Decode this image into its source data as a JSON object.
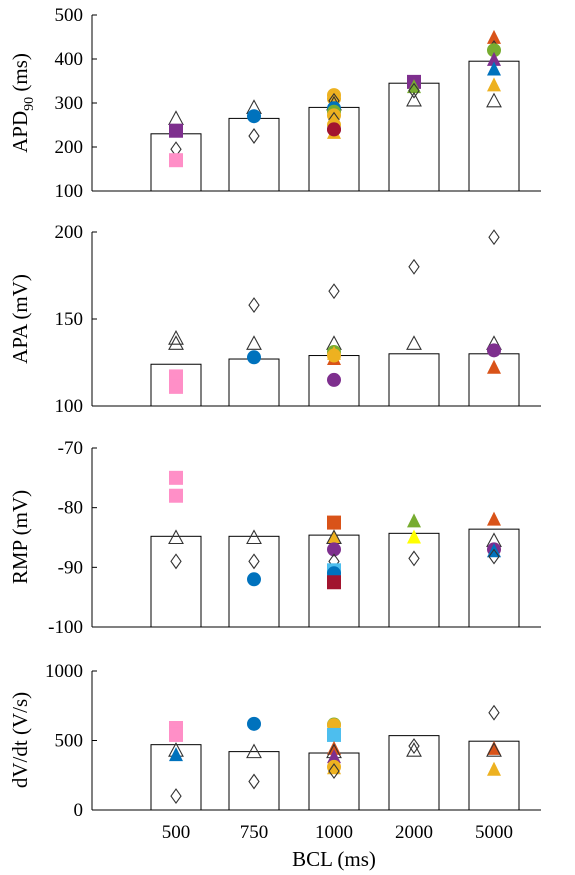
{
  "chart_data": [
    {
      "type": "bar",
      "ylabel": "APD",
      "ylabel_sub": "90",
      "ylabel_unit": " (ms)",
      "ylim": [
        100,
        500
      ],
      "yticks": [
        100,
        200,
        300,
        400,
        500
      ],
      "ytick_labels": [
        "100",
        "200",
        "300",
        "400",
        "500"
      ],
      "categories": [
        "500",
        "750",
        "1000",
        "2000",
        "5000"
      ],
      "values": [
        230,
        265,
        290,
        345,
        395
      ],
      "markers": [
        {
          "cat": 0,
          "shape": "triangle-open",
          "color": "#333333",
          "y": 265
        },
        {
          "cat": 0,
          "shape": "square",
          "color": "#7e2f8e",
          "y": 237
        },
        {
          "cat": 0,
          "shape": "diamond-open",
          "color": "#333333",
          "y": 195
        },
        {
          "cat": 0,
          "shape": "square",
          "color": "#ff8fc7",
          "y": 170
        },
        {
          "cat": 1,
          "shape": "triangle-open",
          "color": "#333333",
          "y": 290
        },
        {
          "cat": 1,
          "shape": "circle",
          "color": "#0072bd",
          "y": 270
        },
        {
          "cat": 1,
          "shape": "diamond-open",
          "color": "#333333",
          "y": 225
        },
        {
          "cat": 2,
          "shape": "circle",
          "color": "#edb120",
          "y": 318
        },
        {
          "cat": 2,
          "shape": "circle",
          "color": "#edb120",
          "y": 310
        },
        {
          "cat": 2,
          "shape": "diamond-open",
          "color": "#333333",
          "y": 305
        },
        {
          "cat": 2,
          "shape": "triangle-open",
          "color": "#333333",
          "y": 298
        },
        {
          "cat": 2,
          "shape": "circle",
          "color": "#0072bd",
          "y": 288
        },
        {
          "cat": 2,
          "shape": "circle",
          "color": "#77ac30",
          "y": 280
        },
        {
          "cat": 2,
          "shape": "circle",
          "color": "#edb120",
          "y": 272
        },
        {
          "cat": 2,
          "shape": "diamond-open",
          "color": "#333333",
          "y": 262
        },
        {
          "cat": 2,
          "shape": "circle",
          "color": "#edb120",
          "y": 250
        },
        {
          "cat": 2,
          "shape": "circle",
          "color": "#7e2f8e",
          "y": 240
        },
        {
          "cat": 2,
          "shape": "triangle",
          "color": "#edb120",
          "y": 232
        },
        {
          "cat": 2,
          "shape": "circle",
          "color": "#a2142f",
          "y": 240
        },
        {
          "cat": 3,
          "shape": "square",
          "color": "#7e2f8e",
          "y": 348
        },
        {
          "cat": 3,
          "shape": "triangle",
          "color": "#77ac30",
          "y": 336
        },
        {
          "cat": 3,
          "shape": "diamond-open",
          "color": "#333333",
          "y": 328
        },
        {
          "cat": 3,
          "shape": "triangle-open",
          "color": "#333333",
          "y": 307
        },
        {
          "cat": 4,
          "shape": "triangle",
          "color": "#d95319",
          "y": 448
        },
        {
          "cat": 4,
          "shape": "diamond-open",
          "color": "#333333",
          "y": 425
        },
        {
          "cat": 4,
          "shape": "circle",
          "color": "#77ac30",
          "y": 420
        },
        {
          "cat": 4,
          "shape": "triangle",
          "color": "#7e2f8e",
          "y": 398
        },
        {
          "cat": 4,
          "shape": "triangle",
          "color": "#0072bd",
          "y": 376
        },
        {
          "cat": 4,
          "shape": "triangle",
          "color": "#edb120",
          "y": 340
        },
        {
          "cat": 4,
          "shape": "triangle-open",
          "color": "#333333",
          "y": 305
        }
      ]
    },
    {
      "type": "bar",
      "ylabel": "APA (mV)",
      "ylim": [
        100,
        200
      ],
      "yticks": [
        100,
        150,
        200
      ],
      "ytick_labels": [
        "100",
        "150",
        "200"
      ],
      "categories": [
        "500",
        "750",
        "1000",
        "2000",
        "5000"
      ],
      "values": [
        124,
        127,
        129,
        130,
        130
      ],
      "markers": [
        {
          "cat": 0,
          "shape": "triangle-open",
          "color": "#333333",
          "y": 139
        },
        {
          "cat": 0,
          "shape": "triangle-open",
          "color": "#333333",
          "y": 136
        },
        {
          "cat": 0,
          "shape": "square",
          "color": "#ff8fc7",
          "y": 117
        },
        {
          "cat": 0,
          "shape": "square",
          "color": "#ff8fc7",
          "y": 111
        },
        {
          "cat": 1,
          "shape": "diamond-open",
          "color": "#333333",
          "y": 158
        },
        {
          "cat": 1,
          "shape": "triangle-open",
          "color": "#333333",
          "y": 136
        },
        {
          "cat": 1,
          "shape": "circle",
          "color": "#0072bd",
          "y": 128
        },
        {
          "cat": 2,
          "shape": "diamond-open",
          "color": "#333333",
          "y": 166
        },
        {
          "cat": 2,
          "shape": "triangle-open",
          "color": "#333333",
          "y": 136
        },
        {
          "cat": 2,
          "shape": "circle",
          "color": "#77ac30",
          "y": 131
        },
        {
          "cat": 2,
          "shape": "triangle",
          "color": "#d95319",
          "y": 127
        },
        {
          "cat": 2,
          "shape": "triangle",
          "color": "#edb120",
          "y": 130
        },
        {
          "cat": 2,
          "shape": "circle",
          "color": "#edb120",
          "y": 129
        },
        {
          "cat": 2,
          "shape": "circle",
          "color": "#7e2f8e",
          "y": 115
        },
        {
          "cat": 3,
          "shape": "diamond-open",
          "color": "#333333",
          "y": 180
        },
        {
          "cat": 3,
          "shape": "triangle-open",
          "color": "#333333",
          "y": 136
        },
        {
          "cat": 4,
          "shape": "diamond-open",
          "color": "#333333",
          "y": 197
        },
        {
          "cat": 4,
          "shape": "triangle-open",
          "color": "#333333",
          "y": 136
        },
        {
          "cat": 4,
          "shape": "circle",
          "color": "#7e2f8e",
          "y": 132
        },
        {
          "cat": 4,
          "shape": "triangle",
          "color": "#d95319",
          "y": 122
        }
      ]
    },
    {
      "type": "bar",
      "ylabel": "RMP (mV)",
      "ylim": [
        -100,
        -70
      ],
      "yticks": [
        -100,
        -90,
        -80,
        -70
      ],
      "ytick_labels": [
        "-100",
        "-90",
        "-80",
        "-70"
      ],
      "categories": [
        "500",
        "750",
        "1000",
        "2000",
        "5000"
      ],
      "values": [
        -84.8,
        -84.8,
        -84.6,
        -84.3,
        -83.6
      ],
      "markers": [
        {
          "cat": 0,
          "shape": "square",
          "color": "#ff8fc7",
          "y": -75
        },
        {
          "cat": 0,
          "shape": "square",
          "color": "#ff8fc7",
          "y": -78
        },
        {
          "cat": 0,
          "shape": "triangle-open",
          "color": "#333333",
          "y": -85
        },
        {
          "cat": 0,
          "shape": "diamond-open",
          "color": "#333333",
          "y": -89
        },
        {
          "cat": 1,
          "shape": "triangle-open",
          "color": "#333333",
          "y": -85
        },
        {
          "cat": 1,
          "shape": "diamond-open",
          "color": "#333333",
          "y": -89
        },
        {
          "cat": 1,
          "shape": "circle",
          "color": "#0072bd",
          "y": -92
        },
        {
          "cat": 2,
          "shape": "square",
          "color": "#d95319",
          "y": -82.5
        },
        {
          "cat": 2,
          "shape": "triangle",
          "color": "#edb120",
          "y": -85
        },
        {
          "cat": 2,
          "shape": "triangle-open",
          "color": "#333333",
          "y": -85
        },
        {
          "cat": 2,
          "shape": "circle",
          "color": "#7e2f8e",
          "y": -87
        },
        {
          "cat": 2,
          "shape": "diamond-open",
          "color": "#333333",
          "y": -89
        },
        {
          "cat": 2,
          "shape": "square",
          "color": "#4dbeee",
          "y": -90.5
        },
        {
          "cat": 2,
          "shape": "circle",
          "color": "#0072bd",
          "y": -91
        },
        {
          "cat": 2,
          "shape": "square",
          "color": "#a2142f",
          "y": -92.5
        },
        {
          "cat": 3,
          "shape": "triangle",
          "color": "#77ac30",
          "y": -82.3
        },
        {
          "cat": 3,
          "shape": "triangle",
          "color": "#ffff00",
          "y": -85
        },
        {
          "cat": 3,
          "shape": "diamond-open",
          "color": "#333333",
          "y": -88.5
        },
        {
          "cat": 4,
          "shape": "triangle",
          "color": "#d95319",
          "y": -82
        },
        {
          "cat": 4,
          "shape": "triangle-open",
          "color": "#333333",
          "y": -85.5
        },
        {
          "cat": 4,
          "shape": "circle",
          "color": "#7e2f8e",
          "y": -87
        },
        {
          "cat": 4,
          "shape": "triangle",
          "color": "#0072bd",
          "y": -87.3
        },
        {
          "cat": 4,
          "shape": "diamond-open",
          "color": "#333333",
          "y": -88.2
        }
      ]
    },
    {
      "type": "bar",
      "ylabel": "dV/dt (V/s)",
      "ylim": [
        0,
        1000
      ],
      "yticks": [
        0,
        500,
        1000
      ],
      "ytick_labels": [
        "0",
        "500",
        "1000"
      ],
      "xlabel": "BCL (ms)",
      "categories": [
        "500",
        "750",
        "1000",
        "2000",
        "5000"
      ],
      "values": [
        470,
        420,
        410,
        535,
        495
      ],
      "markers": [
        {
          "cat": 0,
          "shape": "square",
          "color": "#ff8fc7",
          "y": 590
        },
        {
          "cat": 0,
          "shape": "square",
          "color": "#ff8fc7",
          "y": 540
        },
        {
          "cat": 0,
          "shape": "triangle-open",
          "color": "#333333",
          "y": 430
        },
        {
          "cat": 0,
          "shape": "triangle",
          "color": "#0072bd",
          "y": 395
        },
        {
          "cat": 0,
          "shape": "diamond-open",
          "color": "#333333",
          "y": 100
        },
        {
          "cat": 1,
          "shape": "circle",
          "color": "#0072bd",
          "y": 620
        },
        {
          "cat": 1,
          "shape": "triangle-open",
          "color": "#333333",
          "y": 420
        },
        {
          "cat": 1,
          "shape": "diamond-open",
          "color": "#333333",
          "y": 205
        },
        {
          "cat": 2,
          "shape": "circle",
          "color": "#77ac30",
          "y": 615
        },
        {
          "cat": 2,
          "shape": "circle",
          "color": "#edb120",
          "y": 610
        },
        {
          "cat": 2,
          "shape": "square",
          "color": "#4dbeee",
          "y": 540
        },
        {
          "cat": 2,
          "shape": "triangle",
          "color": "#d95319",
          "y": 440
        },
        {
          "cat": 2,
          "shape": "triangle-open",
          "color": "#333333",
          "y": 420
        },
        {
          "cat": 2,
          "shape": "triangle",
          "color": "#7e2f8e",
          "y": 380
        },
        {
          "cat": 2,
          "shape": "circle",
          "color": "#edb120",
          "y": 310
        },
        {
          "cat": 2,
          "shape": "triangle",
          "color": "#edb120",
          "y": 300
        },
        {
          "cat": 2,
          "shape": "diamond-open",
          "color": "#333333",
          "y": 280
        },
        {
          "cat": 3,
          "shape": "diamond-open",
          "color": "#333333",
          "y": 460
        },
        {
          "cat": 3,
          "shape": "triangle-open",
          "color": "#333333",
          "y": 430
        },
        {
          "cat": 4,
          "shape": "diamond-open",
          "color": "#333333",
          "y": 700
        },
        {
          "cat": 4,
          "shape": "triangle",
          "color": "#d95319",
          "y": 440
        },
        {
          "cat": 4,
          "shape": "triangle-open",
          "color": "#333333",
          "y": 430
        },
        {
          "cat": 4,
          "shape": "triangle",
          "color": "#edb120",
          "y": 290
        }
      ]
    }
  ]
}
